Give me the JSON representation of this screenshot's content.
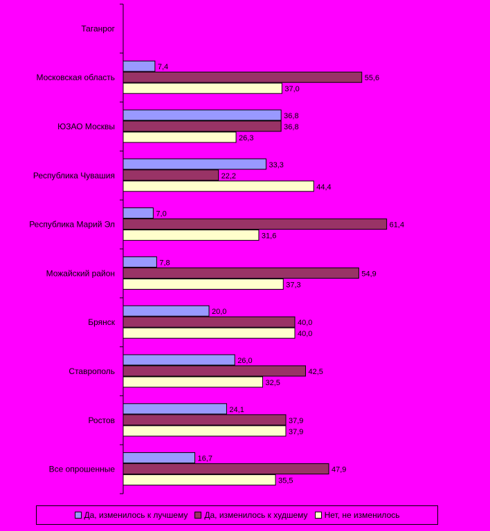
{
  "chart_data": {
    "type": "bar",
    "orientation": "horizontal",
    "categories": [
      "Таганрог",
      "Московская область",
      "ЮЗАО Москвы",
      "Республика Чувашия",
      "Республика Марий Эл",
      "Можайский район",
      "Брянск",
      "Ставрополь",
      "Ростов",
      "Все опрошенные"
    ],
    "series": [
      {
        "name": "Да, изменилось к лучшему",
        "color": "#9999FF",
        "values": [
          null,
          7.4,
          36.8,
          33.3,
          7.0,
          7.8,
          20.0,
          26.0,
          24.1,
          16.7
        ]
      },
      {
        "name": "Да, изменилось к худшему",
        "color": "#993366",
        "values": [
          null,
          55.6,
          36.8,
          22.2,
          61.4,
          54.9,
          40.0,
          42.5,
          37.9,
          47.9
        ]
      },
      {
        "name": "Нет, не изменилось",
        "color": "#FFFFCC",
        "values": [
          null,
          37.0,
          26.3,
          44.4,
          31.6,
          37.3,
          40.0,
          32.5,
          37.9,
          35.5
        ]
      }
    ],
    "xlim": [
      0,
      100
    ],
    "grid": false,
    "legend_position": "bottom"
  },
  "legend": {
    "items": [
      {
        "label": "Да, изменилось к лучшему",
        "color": "#9999FF"
      },
      {
        "label": "Да, изменилось к худшему",
        "color": "#993366"
      },
      {
        "label": "Нет, не изменилось",
        "color": "#FFFFCC"
      }
    ]
  }
}
